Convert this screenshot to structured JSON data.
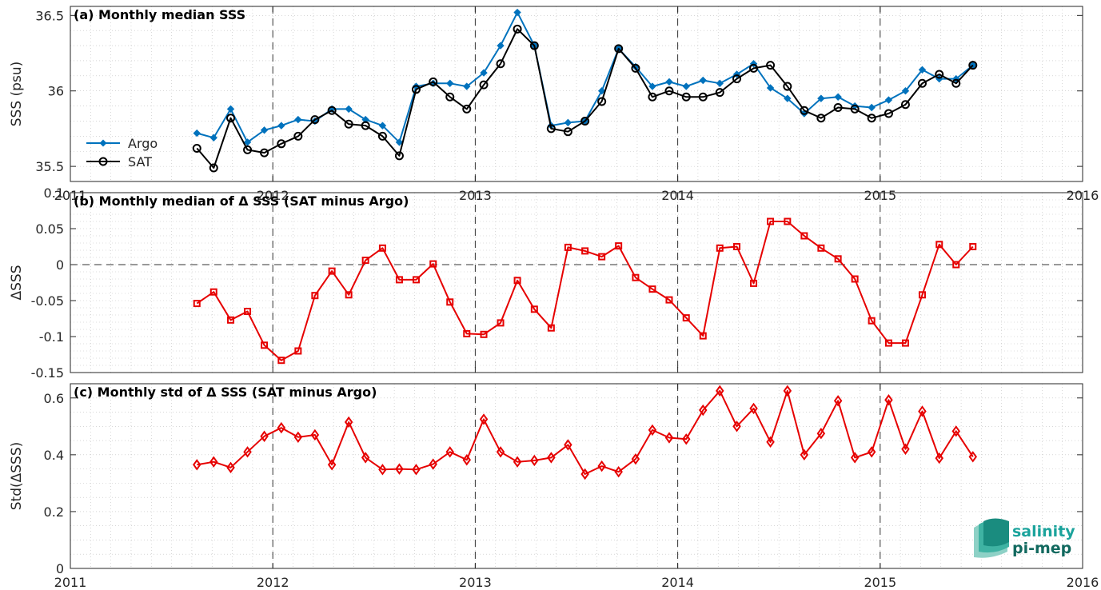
{
  "colors": {
    "argo": "#0072BD",
    "sat": "#000000",
    "delta": "#E60000",
    "grid": "#bfbfbf",
    "axis": "#262626",
    "logo_top": "#1ba39c",
    "logo_bottom": "#12695f"
  },
  "logo": {
    "line1": "salinity",
    "line2": "pi-mep",
    "icon": "salinity-waves-icon"
  },
  "chart_data": [
    {
      "type": "line",
      "title": "(a) Monthly median SSS",
      "ylabel": "SSS (psu)",
      "xlim": [
        2011,
        2016
      ],
      "ylim": [
        35.4,
        36.56
      ],
      "xticks": [
        2011,
        2012,
        2013,
        2014,
        2015,
        2016
      ],
      "xtick_labels": [
        "2011",
        "2012",
        "2013",
        "2014",
        "2015",
        "2016"
      ],
      "yticks": [
        35.5,
        36,
        36.5
      ],
      "ytick_labels": [
        "35.5",
        "36",
        "36.5"
      ],
      "legend": {
        "position": "left",
        "entries": [
          "Argo",
          "SAT"
        ]
      },
      "grid": true,
      "series": [
        {
          "name": "Argo",
          "marker": "diamond",
          "x": [
            2011.625,
            2011.708,
            2011.792,
            2011.875,
            2011.958,
            2012.042,
            2012.125,
            2012.208,
            2012.292,
            2012.375,
            2012.458,
            2012.542,
            2012.625,
            2012.708,
            2012.792,
            2012.875,
            2012.958,
            2013.042,
            2013.125,
            2013.208,
            2013.292,
            2013.375,
            2013.458,
            2013.542,
            2013.625,
            2013.708,
            2013.792,
            2013.875,
            2013.958,
            2014.042,
            2014.125,
            2014.208,
            2014.292,
            2014.375,
            2014.458,
            2014.542,
            2014.625,
            2014.708,
            2014.792,
            2014.875,
            2014.958,
            2015.042,
            2015.125,
            2015.208,
            2015.292,
            2015.375,
            2015.458
          ],
          "values": [
            35.72,
            35.69,
            35.88,
            35.66,
            35.74,
            35.77,
            35.81,
            35.8,
            35.88,
            35.88,
            35.81,
            35.77,
            35.66,
            36.03,
            36.05,
            36.05,
            36.03,
            36.12,
            36.3,
            36.52,
            36.3,
            35.77,
            35.79,
            35.8,
            36.0,
            36.28,
            36.16,
            36.03,
            36.06,
            36.03,
            36.07,
            36.05,
            36.11,
            36.18,
            36.02,
            35.95,
            35.85,
            35.95,
            35.96,
            35.9,
            35.89,
            35.94,
            36.0,
            36.14,
            36.08,
            36.08,
            36.17
          ]
        },
        {
          "name": "SAT",
          "marker": "circle",
          "x": [
            2011.625,
            2011.708,
            2011.792,
            2011.875,
            2011.958,
            2012.042,
            2012.125,
            2012.208,
            2012.292,
            2012.375,
            2012.458,
            2012.542,
            2012.625,
            2012.708,
            2012.792,
            2012.875,
            2012.958,
            2013.042,
            2013.125,
            2013.208,
            2013.292,
            2013.375,
            2013.458,
            2013.542,
            2013.625,
            2013.708,
            2013.792,
            2013.875,
            2013.958,
            2014.042,
            2014.125,
            2014.208,
            2014.292,
            2014.375,
            2014.458,
            2014.542,
            2014.625,
            2014.708,
            2014.792,
            2014.875,
            2014.958,
            2015.042,
            2015.125,
            2015.208,
            2015.292,
            2015.375,
            2015.458
          ],
          "values": [
            35.62,
            35.49,
            35.82,
            35.61,
            35.59,
            35.65,
            35.7,
            35.81,
            35.87,
            35.78,
            35.77,
            35.7,
            35.57,
            36.01,
            36.06,
            35.96,
            35.88,
            36.04,
            36.18,
            36.41,
            36.3,
            35.75,
            35.73,
            35.8,
            35.93,
            36.28,
            36.15,
            35.96,
            36.0,
            35.96,
            35.96,
            35.99,
            36.08,
            36.15,
            36.17,
            36.03,
            35.87,
            35.82,
            35.89,
            35.88,
            35.82,
            35.85,
            35.91,
            36.05,
            36.11,
            36.05,
            36.17
          ]
        }
      ]
    },
    {
      "type": "line",
      "title": "(b) Monthly median of Δ SSS (SAT minus Argo)",
      "ylabel": "ΔSSS",
      "xlim": [
        2011,
        2016
      ],
      "ylim": [
        -0.15,
        0.1
      ],
      "yticks": [
        -0.15,
        -0.1,
        -0.05,
        0,
        0.05,
        0.1
      ],
      "ytick_labels": [
        "-0.15",
        "-0.1",
        "-0.05",
        "0",
        "0.05",
        "0.1"
      ],
      "reference_line": 0,
      "grid": true,
      "series": [
        {
          "marker": "square",
          "x": [
            2011.625,
            2011.708,
            2011.792,
            2011.875,
            2011.958,
            2012.042,
            2012.125,
            2012.208,
            2012.292,
            2012.375,
            2012.458,
            2012.542,
            2012.625,
            2012.708,
            2012.792,
            2012.875,
            2012.958,
            2013.042,
            2013.125,
            2013.208,
            2013.292,
            2013.375,
            2013.458,
            2013.542,
            2013.625,
            2013.708,
            2013.792,
            2013.875,
            2013.958,
            2014.042,
            2014.125,
            2014.208,
            2014.292,
            2014.375,
            2014.458,
            2014.542,
            2014.625,
            2014.708,
            2014.792,
            2014.875,
            2014.958,
            2015.042,
            2015.125,
            2015.208,
            2015.292,
            2015.375,
            2015.458
          ],
          "values": [
            -0.054,
            -0.038,
            -0.077,
            -0.065,
            -0.112,
            -0.133,
            -0.12,
            -0.043,
            -0.009,
            -0.042,
            0.006,
            0.023,
            -0.021,
            -0.021,
            0.001,
            -0.052,
            -0.096,
            -0.097,
            -0.081,
            -0.022,
            -0.062,
            -0.088,
            0.024,
            0.019,
            0.011,
            0.026,
            -0.018,
            -0.034,
            -0.049,
            -0.074,
            -0.099,
            0.023,
            0.025,
            -0.026,
            0.06,
            0.06,
            0.04,
            0.023,
            0.008,
            -0.02,
            -0.078,
            -0.109,
            -0.109,
            -0.042,
            0.028,
            0.0,
            0.025
          ]
        }
      ]
    },
    {
      "type": "line",
      "title": "(c) Monthly std of Δ SSS (SAT minus Argo)",
      "ylabel": "Std(ΔSSS)",
      "xlim": [
        2011,
        2016
      ],
      "ylim": [
        0,
        0.65
      ],
      "yticks": [
        0,
        0.2,
        0.4,
        0.6
      ],
      "ytick_labels": [
        "0",
        "0.2",
        "0.4",
        "0.6"
      ],
      "xticks": [
        2011,
        2012,
        2013,
        2014,
        2015,
        2016
      ],
      "xtick_labels": [
        "2011",
        "2012",
        "2013",
        "2014",
        "2015",
        "2016"
      ],
      "grid": true,
      "series": [
        {
          "marker": "diamond",
          "x": [
            2011.625,
            2011.708,
            2011.792,
            2011.875,
            2011.958,
            2012.042,
            2012.125,
            2012.208,
            2012.292,
            2012.375,
            2012.458,
            2012.542,
            2012.625,
            2012.708,
            2012.792,
            2012.875,
            2012.958,
            2013.042,
            2013.125,
            2013.208,
            2013.292,
            2013.375,
            2013.458,
            2013.542,
            2013.625,
            2013.708,
            2013.792,
            2013.875,
            2013.958,
            2014.042,
            2014.125,
            2014.208,
            2014.292,
            2014.375,
            2014.458,
            2014.542,
            2014.625,
            2014.708,
            2014.792,
            2014.875,
            2014.958,
            2015.042,
            2015.125,
            2015.208,
            2015.292,
            2015.375,
            2015.458
          ],
          "values": [
            0.365,
            0.375,
            0.355,
            0.41,
            0.465,
            0.495,
            0.462,
            0.47,
            0.365,
            0.515,
            0.39,
            0.348,
            0.35,
            0.348,
            0.367,
            0.41,
            0.382,
            0.525,
            0.41,
            0.375,
            0.38,
            0.39,
            0.435,
            0.332,
            0.36,
            0.34,
            0.385,
            0.487,
            0.46,
            0.455,
            0.557,
            0.625,
            0.5,
            0.563,
            0.445,
            0.625,
            0.4,
            0.475,
            0.59,
            0.39,
            0.41,
            0.593,
            0.42,
            0.553,
            0.388,
            0.483,
            0.393
          ]
        }
      ]
    }
  ]
}
